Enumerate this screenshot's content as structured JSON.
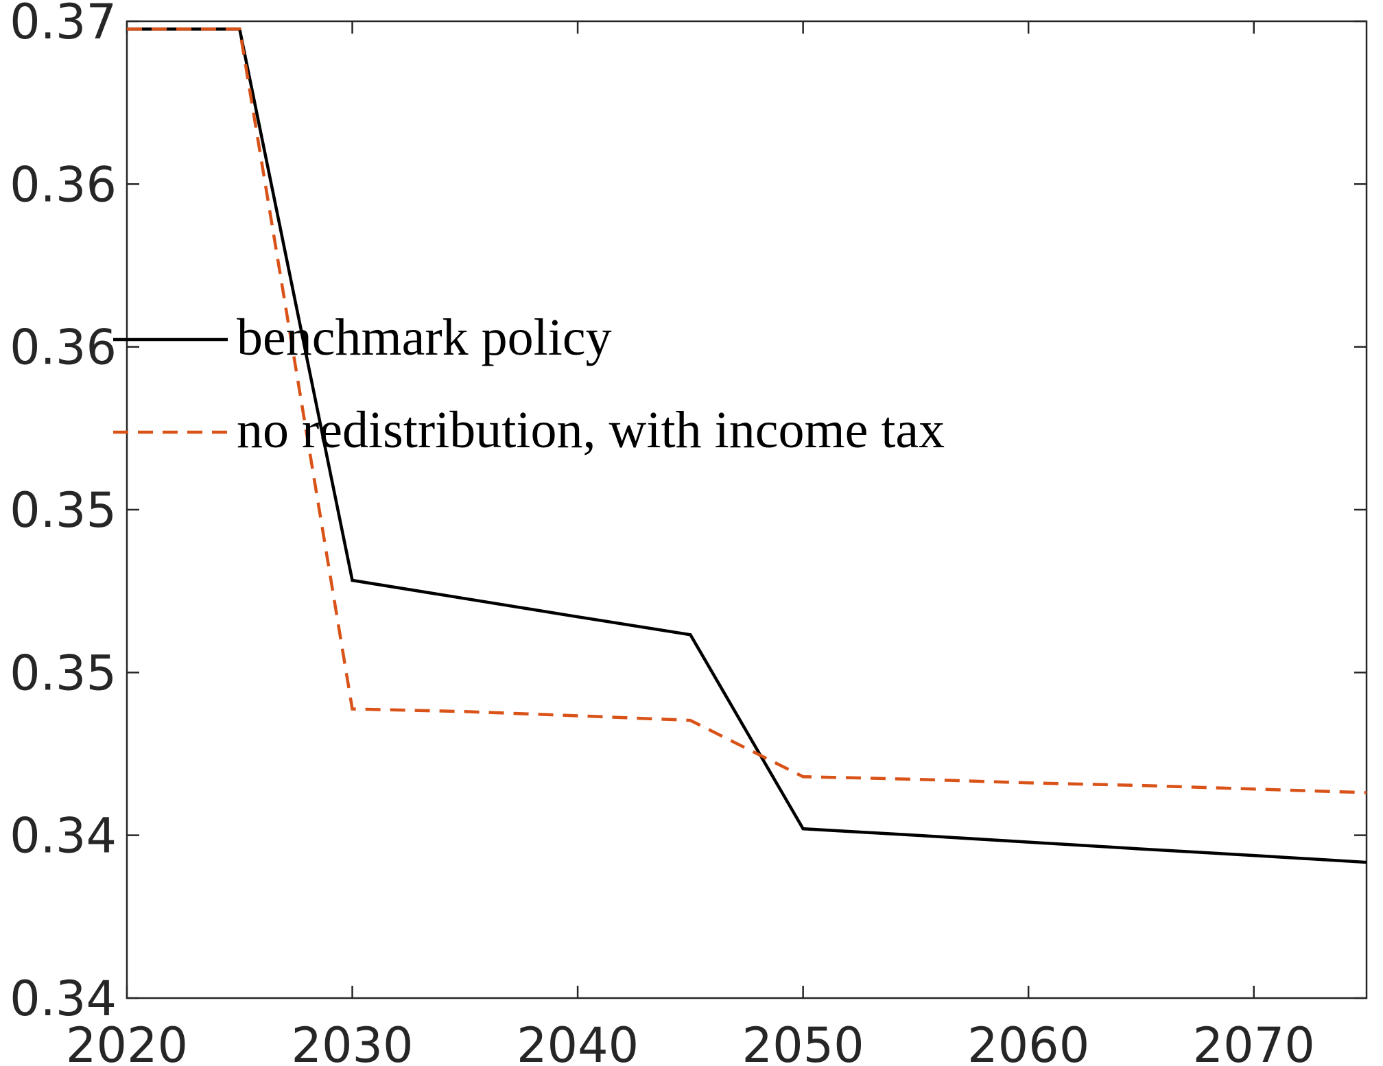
{
  "chart_data": {
    "type": "line",
    "x": [
      2020,
      2025,
      2030,
      2035,
      2040,
      2045,
      2050,
      2055,
      2060,
      2065,
      2070,
      2075
    ],
    "series": [
      {
        "name": "benchmark policy",
        "color": "#000000",
        "dash": false,
        "values": [
          0.36676,
          0.36676,
          0.34983,
          0.34927,
          0.34871,
          0.34816,
          0.3422,
          0.342,
          0.34179,
          0.34158,
          0.34138,
          0.34117
        ]
      },
      {
        "name": "no redistribution, with income tax",
        "color": "#d95319",
        "dash": true,
        "values": [
          0.36676,
          0.36676,
          0.34588,
          0.3458,
          0.34567,
          0.34553,
          0.3438,
          0.34372,
          0.34361,
          0.34353,
          0.34342,
          0.34331
        ]
      }
    ],
    "xlim": [
      2020,
      2075
    ],
    "xticks": [
      2020,
      2030,
      2040,
      2050,
      2060,
      2070
    ],
    "ylim": [
      0.337,
      0.367
    ],
    "yticks": [
      {
        "value": 0.337,
        "label": "0.34"
      },
      {
        "value": 0.342,
        "label": "0.34"
      },
      {
        "value": 0.347,
        "label": "0.35"
      },
      {
        "value": 0.352,
        "label": "0.35"
      },
      {
        "value": 0.357,
        "label": "0.36"
      },
      {
        "value": 0.362,
        "label": "0.36"
      },
      {
        "value": 0.367,
        "label": "0.37"
      }
    ],
    "grid": false,
    "legend": "west"
  }
}
